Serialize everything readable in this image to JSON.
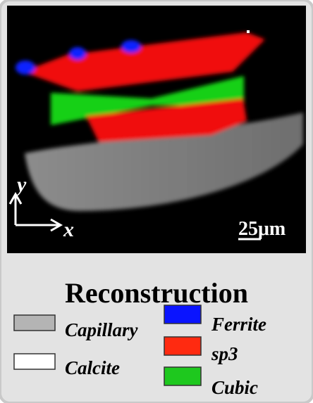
{
  "image": {
    "axis_labels": {
      "y": "y",
      "x": "x"
    },
    "scale_bar": "25μm"
  },
  "legend": {
    "title": "Reconstruction",
    "items": [
      {
        "label": "Capillary",
        "color": "#b4b4b4"
      },
      {
        "label": "Calcite",
        "color": "#ffffff"
      },
      {
        "label": "Ferrite",
        "color": "#0a14ff"
      },
      {
        "label": "sp3",
        "color": "#ff2a10"
      },
      {
        "label": "Cubic",
        "color": "#1ec81e"
      }
    ]
  }
}
